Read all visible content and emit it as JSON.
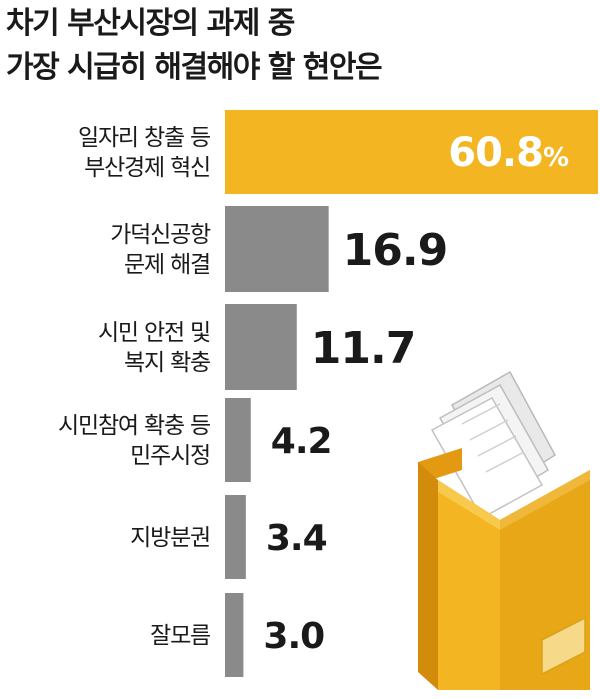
{
  "title_lines": [
    "차기 부산시장의 과제 중",
    "가장 시급히 해결해야 할 현안은"
  ],
  "colors": {
    "highlight": "#f3b622",
    "bar": "#8a8a8a",
    "text": "#1a1a1a",
    "inside_text": "#ffffff"
  },
  "chart_data": {
    "type": "bar",
    "orientation": "horizontal",
    "title": "차기 부산시장의 과제 중 가장 시급히 해결해야 할 현안은",
    "categories": [
      [
        "일자리 창출 등",
        "부산경제 혁신"
      ],
      [
        "가덕신공항",
        "문제 해결"
      ],
      [
        "시민 안전 및",
        "복지 확충"
      ],
      [
        "시민참여 확충 등",
        "민주시정"
      ],
      [
        "지방분권"
      ],
      [
        "잘모름"
      ]
    ],
    "values": [
      60.8,
      16.9,
      11.7,
      4.2,
      3.4,
      3.0
    ],
    "value_labels": [
      "60.8",
      "16.9",
      "11.7",
      "4.2",
      "3.4",
      "3.0"
    ],
    "first_value_suffix": "%",
    "highlight_index": 0,
    "xlim": [
      0,
      60.8
    ],
    "grid": false,
    "legend": "none"
  },
  "illustration": {
    "icon": "file-box-with-papers-icon"
  }
}
